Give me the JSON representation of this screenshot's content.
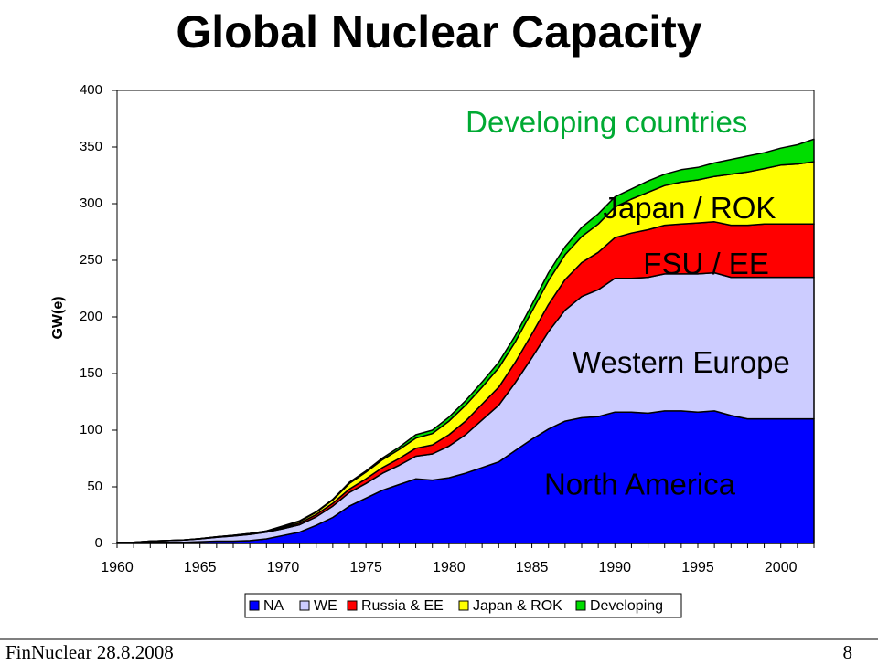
{
  "slide": {
    "title": "Global Nuclear Capacity",
    "footer_left": "FinNuclear 28.8.2008",
    "page_number": "8"
  },
  "chart_data": {
    "type": "area",
    "stacked": true,
    "title": "Global Nuclear Capacity",
    "xlabel": "",
    "ylabel": "GW(e)",
    "xlim": [
      1960,
      2002
    ],
    "ylim": [
      0,
      400
    ],
    "y_ticks": [
      0,
      50,
      100,
      150,
      200,
      250,
      300,
      350,
      400
    ],
    "x_tick_labels": [
      "1960",
      "1965",
      "1970",
      "1975",
      "1980",
      "1985",
      "1990",
      "1995",
      "2000"
    ],
    "x_tick_values": [
      1960,
      1965,
      1970,
      1975,
      1980,
      1985,
      1990,
      1995,
      2000
    ],
    "grid": false,
    "legend_position": "bottom",
    "x": [
      1960,
      1961,
      1962,
      1963,
      1964,
      1965,
      1966,
      1967,
      1968,
      1969,
      1970,
      1971,
      1972,
      1973,
      1974,
      1975,
      1976,
      1977,
      1978,
      1979,
      1980,
      1981,
      1982,
      1983,
      1984,
      1985,
      1986,
      1987,
      1988,
      1989,
      1990,
      1991,
      1992,
      1993,
      1994,
      1995,
      1996,
      1997,
      1998,
      1999,
      2000,
      2001,
      2002
    ],
    "series": [
      {
        "name": "NA",
        "color": "#0000ff",
        "values": [
          0.5,
          0.5,
          1,
          1,
          1,
          1.5,
          2,
          2,
          2.5,
          4,
          7,
          10,
          16,
          23,
          33,
          40,
          47,
          52,
          57,
          56,
          58,
          62,
          67,
          72,
          82,
          92,
          101,
          108,
          111,
          112,
          116,
          116,
          115,
          117,
          117,
          116,
          117,
          113,
          110,
          110,
          110,
          110,
          110
        ]
      },
      {
        "name": "WE",
        "color": "#ccccff",
        "values": [
          0.5,
          0.5,
          1,
          1.5,
          2,
          2.5,
          3.5,
          4.5,
          5.5,
          6,
          6,
          6.5,
          7.5,
          10,
          12,
          13,
          15,
          17,
          20,
          23,
          28,
          34,
          42,
          50,
          60,
          72,
          86,
          98,
          107,
          112,
          118,
          118,
          120,
          121,
          121,
          122,
          122,
          122,
          125,
          125,
          125,
          125,
          125
        ]
      },
      {
        "name": "Russia & EE",
        "color": "#ff0000",
        "values": [
          0,
          0,
          0,
          0,
          0,
          0.2,
          0.3,
          0.5,
          0.5,
          0.5,
          1,
          1.5,
          2,
          2.5,
          3,
          4,
          5,
          6,
          7,
          8,
          10,
          12,
          14,
          16,
          18,
          21,
          24,
          27,
          30,
          33,
          36,
          40,
          42,
          43,
          44,
          45,
          45,
          46,
          46,
          47,
          47,
          47,
          47
        ]
      },
      {
        "name": "Japan & ROK",
        "color": "#ffff00",
        "values": [
          0,
          0,
          0,
          0,
          0,
          0,
          0,
          0.2,
          0.3,
          0.5,
          1,
          1.5,
          2,
          3,
          5,
          6,
          7,
          8,
          9,
          10,
          12,
          14,
          15,
          17,
          18,
          20,
          21,
          22,
          23,
          25,
          27,
          30,
          33,
          35,
          37,
          38,
          40,
          45,
          47,
          49,
          52,
          53,
          55
        ]
      },
      {
        "name": "Developing",
        "color": "#00dd00",
        "values": [
          0,
          0,
          0,
          0,
          0,
          0,
          0,
          0,
          0,
          0,
          0.5,
          0.5,
          0.5,
          0.5,
          1,
          1,
          1.5,
          2,
          3,
          3,
          3.5,
          4,
          4.5,
          5,
          5.5,
          6,
          7,
          7,
          8,
          9,
          9,
          9,
          10,
          10,
          11,
          11,
          12,
          13,
          14,
          14,
          15,
          17,
          20
        ]
      }
    ],
    "region_labels": [
      {
        "text": "Developing countries",
        "color": "#00aa33",
        "x": 1989.5,
        "y": 370,
        "size": 33
      },
      {
        "text": "Japan / ROK",
        "color": "#000000",
        "x": 1994.5,
        "y": 294,
        "size": 33
      },
      {
        "text": "FSU / EE",
        "color": "#000000",
        "x": 1995.5,
        "y": 245,
        "size": 33
      },
      {
        "text": "Western Europe",
        "color": "#000000",
        "x": 1994,
        "y": 158,
        "size": 33
      },
      {
        "text": "North America",
        "color": "#000000",
        "x": 1991.5,
        "y": 50,
        "size": 33
      }
    ]
  }
}
